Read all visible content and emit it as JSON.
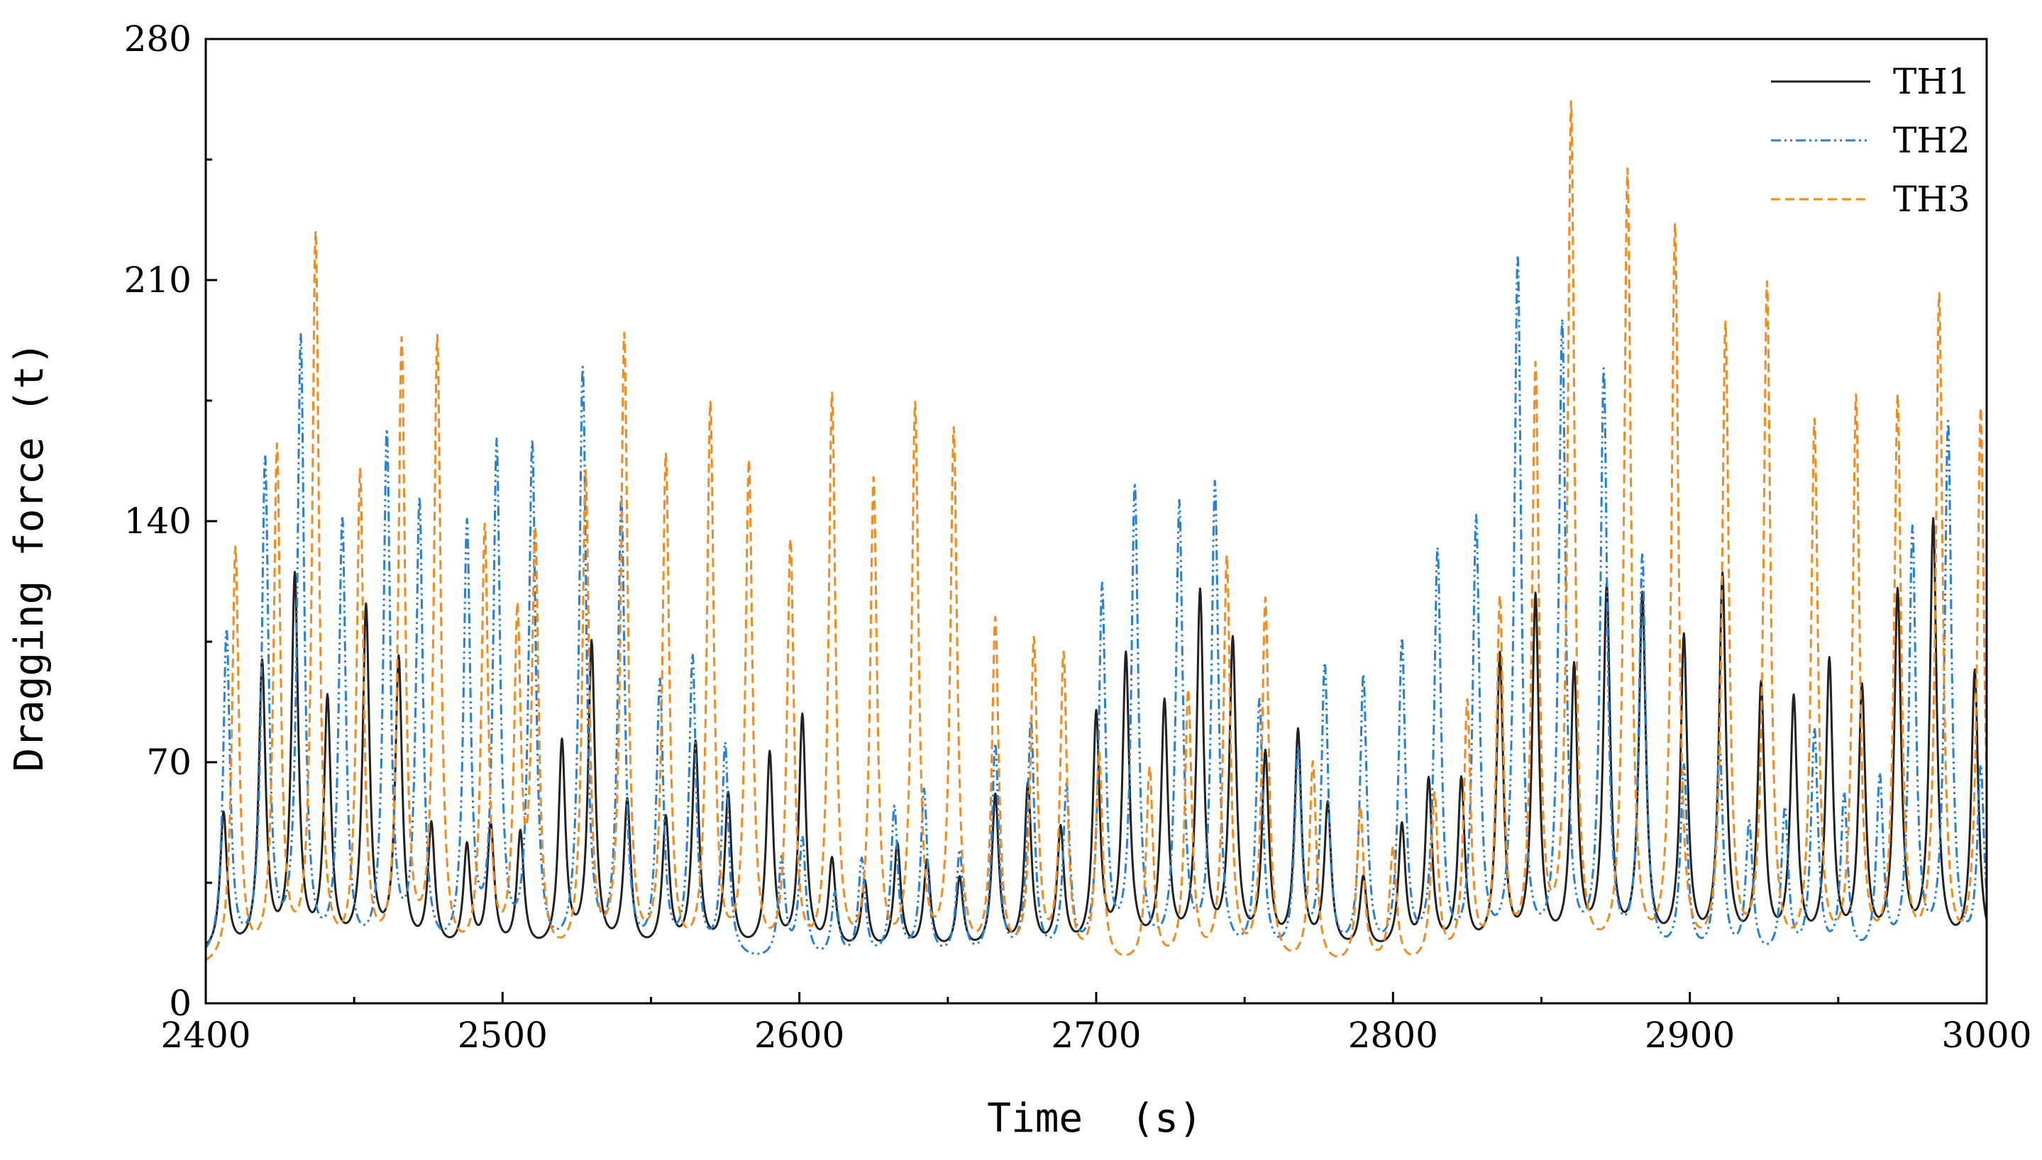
{
  "chart_data": {
    "type": "line",
    "title": "",
    "xlabel": "Time  (s)",
    "ylabel": "Dragging force (t)",
    "xlim": [
      2400,
      3000
    ],
    "ylim": [
      0,
      280
    ],
    "x_ticks": [
      2400,
      2500,
      2600,
      2700,
      2800,
      2900,
      3000
    ],
    "y_ticks": [
      0,
      70,
      140,
      210,
      280
    ],
    "grid": false,
    "legend": "top-right",
    "series": [
      {
        "name": "TH1",
        "color": "#222222",
        "style": "solid",
        "base": 14,
        "peaks": [
          [
            2406,
            54
          ],
          [
            2419,
            97
          ],
          [
            2430,
            122
          ],
          [
            2441,
            86
          ],
          [
            2454,
            113
          ],
          [
            2465,
            98
          ],
          [
            2476,
            50
          ],
          [
            2488,
            44
          ],
          [
            2496,
            50
          ],
          [
            2506,
            48
          ],
          [
            2520,
            74
          ],
          [
            2530,
            103
          ],
          [
            2542,
            57
          ],
          [
            2555,
            52
          ],
          [
            2565,
            74
          ],
          [
            2576,
            59
          ],
          [
            2590,
            71
          ],
          [
            2601,
            82
          ],
          [
            2611,
            40
          ],
          [
            2622,
            34
          ],
          [
            2633,
            45
          ],
          [
            2643,
            40
          ],
          [
            2654,
            35
          ],
          [
            2666,
            59
          ],
          [
            2677,
            62
          ],
          [
            2688,
            49
          ],
          [
            2700,
            82
          ],
          [
            2710,
            99
          ],
          [
            2723,
            85
          ],
          [
            2735,
            117
          ],
          [
            2746,
            103
          ],
          [
            2757,
            70
          ],
          [
            2768,
            77
          ],
          [
            2778,
            56
          ],
          [
            2790,
            35
          ],
          [
            2803,
            50
          ],
          [
            2812,
            63
          ],
          [
            2823,
            63
          ],
          [
            2836,
            99
          ],
          [
            2848,
            116
          ],
          [
            2861,
            95
          ],
          [
            2872,
            118
          ],
          [
            2884,
            116
          ],
          [
            2898,
            104
          ],
          [
            2911,
            122
          ],
          [
            2924,
            90
          ],
          [
            2935,
            86
          ],
          [
            2947,
            97
          ],
          [
            2958,
            89
          ],
          [
            2970,
            117
          ],
          [
            2982,
            138
          ],
          [
            2996,
            95
          ]
        ]
      },
      {
        "name": "TH2",
        "color": "#2680d8",
        "style": "dashdot",
        "base": 11,
        "peaks": [
          [
            2407,
            106
          ],
          [
            2420,
            155
          ],
          [
            2432,
            190
          ],
          [
            2446,
            137
          ],
          [
            2461,
            162
          ],
          [
            2472,
            142
          ],
          [
            2488,
            135
          ],
          [
            2498,
            158
          ],
          [
            2510,
            159
          ],
          [
            2527,
            181
          ],
          [
            2540,
            143
          ],
          [
            2553,
            90
          ],
          [
            2564,
            98
          ],
          [
            2575,
            73
          ],
          [
            2594,
            40
          ],
          [
            2601,
            46
          ],
          [
            2612,
            30
          ],
          [
            2621,
            40
          ],
          [
            2632,
            55
          ],
          [
            2642,
            60
          ],
          [
            2654,
            42
          ],
          [
            2666,
            73
          ],
          [
            2678,
            80
          ],
          [
            2690,
            60
          ],
          [
            2702,
            118
          ],
          [
            2713,
            147
          ],
          [
            2728,
            142
          ],
          [
            2740,
            148
          ],
          [
            2755,
            85
          ],
          [
            2768,
            70
          ],
          [
            2777,
            95
          ],
          [
            2790,
            92
          ],
          [
            2803,
            102
          ],
          [
            2815,
            128
          ],
          [
            2828,
            137
          ],
          [
            2842,
            213
          ],
          [
            2857,
            194
          ],
          [
            2871,
            180
          ],
          [
            2884,
            127
          ],
          [
            2898,
            66
          ],
          [
            2910,
            72
          ],
          [
            2920,
            50
          ],
          [
            2932,
            54
          ],
          [
            2942,
            77
          ],
          [
            2952,
            58
          ],
          [
            2964,
            63
          ],
          [
            2975,
            135
          ],
          [
            2987,
            166
          ],
          [
            2998,
            66
          ]
        ]
      },
      {
        "name": "TH3",
        "color": "#f28a1e",
        "style": "dashed",
        "base": 9,
        "peaks": [
          [
            2410,
            130
          ],
          [
            2424,
            158
          ],
          [
            2437,
            220
          ],
          [
            2452,
            150
          ],
          [
            2466,
            188
          ],
          [
            2478,
            189
          ],
          [
            2494,
            134
          ],
          [
            2505,
            106
          ],
          [
            2511,
            130
          ],
          [
            2528,
            150
          ],
          [
            2541,
            190
          ],
          [
            2555,
            155
          ],
          [
            2570,
            170
          ],
          [
            2583,
            153
          ],
          [
            2597,
            130
          ],
          [
            2611,
            173
          ],
          [
            2625,
            148
          ],
          [
            2639,
            170
          ],
          [
            2652,
            163
          ],
          [
            2666,
            108
          ],
          [
            2679,
            102
          ],
          [
            2689,
            98
          ],
          [
            2701,
            70
          ],
          [
            2718,
            66
          ],
          [
            2731,
            88
          ],
          [
            2744,
            127
          ],
          [
            2757,
            115
          ],
          [
            2773,
            68
          ],
          [
            2789,
            55
          ],
          [
            2800,
            43
          ],
          [
            2814,
            58
          ],
          [
            2825,
            84
          ],
          [
            2836,
            113
          ],
          [
            2848,
            180
          ],
          [
            2860,
            257
          ],
          [
            2879,
            238
          ],
          [
            2895,
            222
          ],
          [
            2912,
            193
          ],
          [
            2926,
            205
          ],
          [
            2942,
            165
          ],
          [
            2956,
            172
          ],
          [
            2970,
            172
          ],
          [
            2984,
            202
          ],
          [
            2998,
            170
          ]
        ]
      }
    ]
  }
}
